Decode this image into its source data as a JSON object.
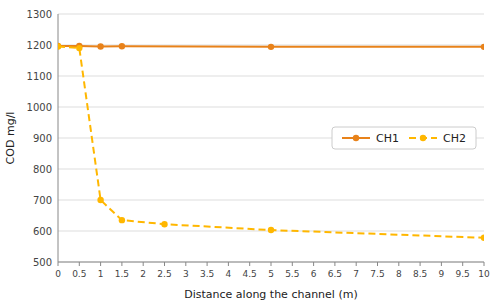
{
  "chart_data": {
    "type": "line",
    "x_label": "Distance along the channel (m)",
    "y_label": "COD mg/l",
    "series": [
      {
        "name": "CH1",
        "color": "#E8821A",
        "line_style": "solid",
        "marker": "circle",
        "x": [
          0,
          0.5,
          1,
          1.5,
          5,
          10
        ],
        "values": [
          1197,
          1197,
          1195,
          1196,
          1194,
          1194
        ]
      },
      {
        "name": "CH2",
        "color": "#FFB700",
        "line_style": "dashed",
        "marker": "circle",
        "x": [
          0,
          0.5,
          1,
          1.5,
          2.5,
          5,
          10
        ],
        "values": [
          1195,
          1190,
          700,
          635,
          622,
          603,
          578
        ]
      }
    ],
    "xlim": [
      0,
      10
    ],
    "ylim": [
      500,
      1300
    ],
    "xticks": [
      0,
      0.5,
      1,
      1.5,
      2,
      2.5,
      3,
      3.5,
      4,
      4.5,
      5,
      5.5,
      6,
      6.5,
      7,
      7.5,
      8,
      8.5,
      9,
      9.5,
      10
    ],
    "yticks": [
      500,
      600,
      700,
      800,
      900,
      1000,
      1100,
      1200,
      1300
    ],
    "grid": true,
    "legend": "right"
  }
}
